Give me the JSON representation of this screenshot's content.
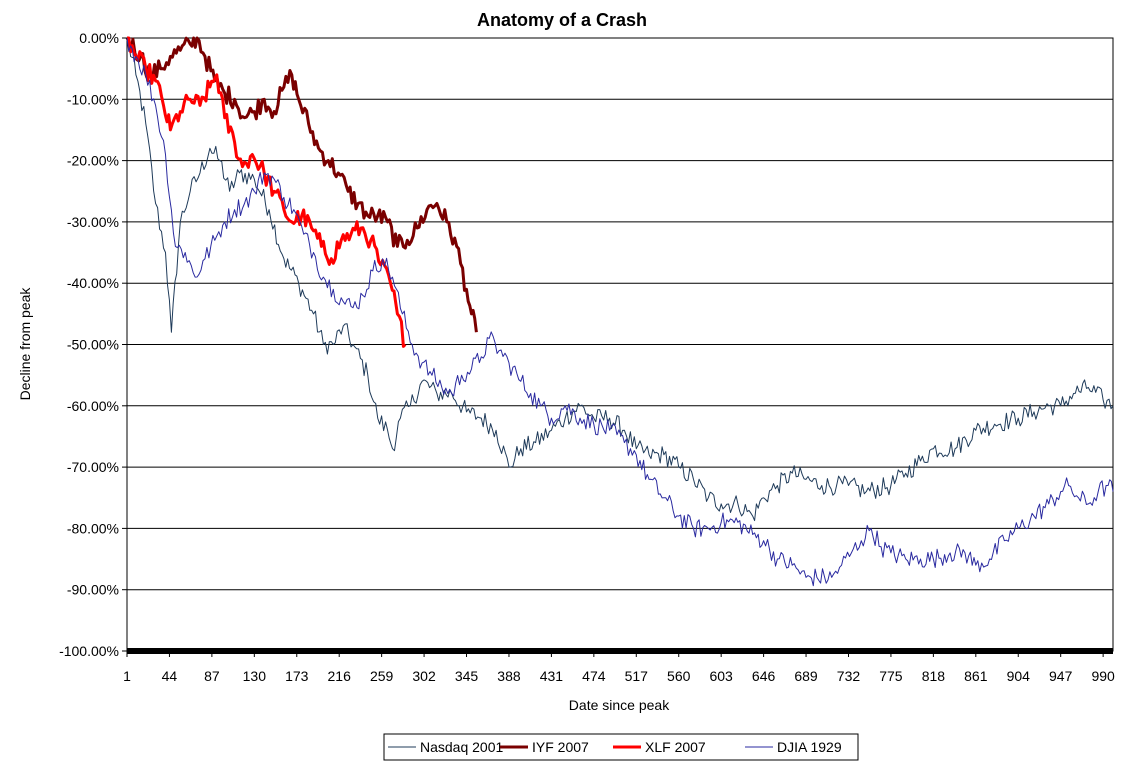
{
  "chart_data": {
    "type": "line",
    "title": "Anatomy of a Crash",
    "xlabel": "Date since peak",
    "ylabel": "Decline from peak",
    "xlim": [
      1,
      1000
    ],
    "ylim": [
      -100,
      0
    ],
    "x_ticks": [
      "1",
      "44",
      "87",
      "130",
      "173",
      "216",
      "259",
      "302",
      "345",
      "388",
      "431",
      "474",
      "517",
      "560",
      "603",
      "646",
      "689",
      "732",
      "775",
      "818",
      "861",
      "904",
      "947",
      "990"
    ],
    "y_ticks": [
      "0.00%",
      "-10.00%",
      "-20.00%",
      "-30.00%",
      "-40.00%",
      "-50.00%",
      "-60.00%",
      "-70.00%",
      "-80.00%",
      "-90.00%",
      "-100.00%"
    ],
    "grid": "horizontal",
    "legend_position": "bottom",
    "series": [
      {
        "name": "Nasdaq 2001",
        "color": "#1f3b5a",
        "points": [
          [
            1,
            0
          ],
          [
            10,
            -6
          ],
          [
            20,
            -14
          ],
          [
            30,
            -27
          ],
          [
            40,
            -35
          ],
          [
            46,
            -48
          ],
          [
            55,
            -30
          ],
          [
            65,
            -25
          ],
          [
            75,
            -22
          ],
          [
            85,
            -18
          ],
          [
            95,
            -20
          ],
          [
            105,
            -25
          ],
          [
            115,
            -22
          ],
          [
            130,
            -23
          ],
          [
            145,
            -28
          ],
          [
            160,
            -36
          ],
          [
            175,
            -40
          ],
          [
            190,
            -45
          ],
          [
            200,
            -50
          ],
          [
            210,
            -50
          ],
          [
            220,
            -47
          ],
          [
            230,
            -50
          ],
          [
            245,
            -55
          ],
          [
            255,
            -62
          ],
          [
            265,
            -64
          ],
          [
            270,
            -67
          ],
          [
            278,
            -62
          ],
          [
            288,
            -60
          ],
          [
            300,
            -56
          ],
          [
            315,
            -58
          ],
          [
            330,
            -58
          ],
          [
            345,
            -61
          ],
          [
            360,
            -62
          ],
          [
            375,
            -64
          ],
          [
            388,
            -70
          ],
          [
            400,
            -67
          ],
          [
            415,
            -66
          ],
          [
            431,
            -64
          ],
          [
            445,
            -62
          ],
          [
            460,
            -60
          ],
          [
            474,
            -62
          ],
          [
            490,
            -62
          ],
          [
            505,
            -64
          ],
          [
            517,
            -67
          ],
          [
            530,
            -68
          ],
          [
            545,
            -68
          ],
          [
            560,
            -70
          ],
          [
            575,
            -72
          ],
          [
            590,
            -75
          ],
          [
            603,
            -76
          ],
          [
            620,
            -76
          ],
          [
            635,
            -78
          ],
          [
            646,
            -75
          ],
          [
            660,
            -73
          ],
          [
            675,
            -71
          ],
          [
            689,
            -72
          ],
          [
            705,
            -73
          ],
          [
            720,
            -73
          ],
          [
            732,
            -73
          ],
          [
            750,
            -74
          ],
          [
            775,
            -73
          ],
          [
            790,
            -71
          ],
          [
            805,
            -69
          ],
          [
            818,
            -67
          ],
          [
            840,
            -67
          ],
          [
            861,
            -64
          ],
          [
            880,
            -63
          ],
          [
            904,
            -62
          ],
          [
            920,
            -61
          ],
          [
            935,
            -60
          ],
          [
            947,
            -60
          ],
          [
            960,
            -58
          ],
          [
            975,
            -57
          ],
          [
            990,
            -59
          ],
          [
            1000,
            -60
          ]
        ]
      },
      {
        "name": "IYF 2007",
        "color": "#7a0000",
        "points": [
          [
            1,
            0
          ],
          [
            15,
            -3
          ],
          [
            25,
            -6
          ],
          [
            35,
            -5
          ],
          [
            45,
            -3
          ],
          [
            55,
            -2
          ],
          [
            65,
            -1
          ],
          [
            72,
            0
          ],
          [
            80,
            -3
          ],
          [
            90,
            -7
          ],
          [
            100,
            -9
          ],
          [
            110,
            -10
          ],
          [
            120,
            -13
          ],
          [
            130,
            -12
          ],
          [
            140,
            -10
          ],
          [
            150,
            -12
          ],
          [
            160,
            -8
          ],
          [
            168,
            -6
          ],
          [
            175,
            -10
          ],
          [
            185,
            -14
          ],
          [
            195,
            -18
          ],
          [
            205,
            -20
          ],
          [
            215,
            -22
          ],
          [
            225,
            -25
          ],
          [
            235,
            -27
          ],
          [
            245,
            -29
          ],
          [
            255,
            -29
          ],
          [
            265,
            -30
          ],
          [
            275,
            -34
          ],
          [
            285,
            -33
          ],
          [
            295,
            -31
          ],
          [
            305,
            -28
          ],
          [
            315,
            -27
          ],
          [
            325,
            -30
          ],
          [
            335,
            -34
          ],
          [
            345,
            -41
          ],
          [
            350,
            -45
          ],
          [
            355,
            -48
          ]
        ]
      },
      {
        "name": "XLF 2007",
        "color": "#ff0000",
        "points": [
          [
            1,
            0
          ],
          [
            10,
            -3
          ],
          [
            20,
            -5
          ],
          [
            30,
            -7
          ],
          [
            38,
            -11
          ],
          [
            45,
            -15
          ],
          [
            55,
            -12
          ],
          [
            65,
            -10
          ],
          [
            75,
            -11
          ],
          [
            85,
            -8
          ],
          [
            92,
            -6
          ],
          [
            100,
            -13
          ],
          [
            110,
            -17
          ],
          [
            118,
            -21
          ],
          [
            128,
            -19
          ],
          [
            140,
            -22
          ],
          [
            150,
            -25
          ],
          [
            160,
            -28
          ],
          [
            168,
            -30
          ],
          [
            178,
            -29
          ],
          [
            188,
            -31
          ],
          [
            198,
            -34
          ],
          [
            208,
            -36
          ],
          [
            218,
            -33
          ],
          [
            228,
            -32
          ],
          [
            238,
            -31
          ],
          [
            248,
            -33
          ],
          [
            258,
            -37
          ],
          [
            268,
            -40
          ],
          [
            275,
            -45
          ],
          [
            283,
            -50
          ]
        ]
      },
      {
        "name": "DJIA 1929",
        "color": "#2a2aa0",
        "points": [
          [
            1,
            0
          ],
          [
            10,
            -3
          ],
          [
            20,
            -6
          ],
          [
            30,
            -11
          ],
          [
            40,
            -19
          ],
          [
            50,
            -34
          ],
          [
            60,
            -35
          ],
          [
            70,
            -39
          ],
          [
            80,
            -36
          ],
          [
            90,
            -33
          ],
          [
            100,
            -30
          ],
          [
            110,
            -28
          ],
          [
            120,
            -27
          ],
          [
            130,
            -25
          ],
          [
            140,
            -22
          ],
          [
            150,
            -23
          ],
          [
            160,
            -26
          ],
          [
            170,
            -28
          ],
          [
            180,
            -32
          ],
          [
            190,
            -35
          ],
          [
            200,
            -39
          ],
          [
            210,
            -41
          ],
          [
            220,
            -43
          ],
          [
            230,
            -44
          ],
          [
            240,
            -42
          ],
          [
            250,
            -38
          ],
          [
            260,
            -36
          ],
          [
            270,
            -39
          ],
          [
            280,
            -45
          ],
          [
            290,
            -50
          ],
          [
            300,
            -53
          ],
          [
            310,
            -55
          ],
          [
            320,
            -57
          ],
          [
            330,
            -58
          ],
          [
            340,
            -55
          ],
          [
            350,
            -54
          ],
          [
            360,
            -52
          ],
          [
            368,
            -49
          ],
          [
            378,
            -51
          ],
          [
            388,
            -53
          ],
          [
            400,
            -56
          ],
          [
            410,
            -58
          ],
          [
            420,
            -60
          ],
          [
            431,
            -62
          ],
          [
            445,
            -60
          ],
          [
            460,
            -62
          ],
          [
            474,
            -63
          ],
          [
            490,
            -64
          ],
          [
            505,
            -66
          ],
          [
            517,
            -68
          ],
          [
            530,
            -72
          ],
          [
            545,
            -75
          ],
          [
            560,
            -78
          ],
          [
            575,
            -80
          ],
          [
            590,
            -80
          ],
          [
            603,
            -79
          ],
          [
            620,
            -79
          ],
          [
            635,
            -81
          ],
          [
            646,
            -82
          ],
          [
            660,
            -85
          ],
          [
            675,
            -86
          ],
          [
            689,
            -88
          ],
          [
            700,
            -88
          ],
          [
            715,
            -88
          ],
          [
            725,
            -86
          ],
          [
            735,
            -84
          ],
          [
            745,
            -82
          ],
          [
            755,
            -80
          ],
          [
            765,
            -83
          ],
          [
            775,
            -84
          ],
          [
            790,
            -85
          ],
          [
            805,
            -85
          ],
          [
            818,
            -85
          ],
          [
            835,
            -84
          ],
          [
            850,
            -84
          ],
          [
            861,
            -86
          ],
          [
            875,
            -85
          ],
          [
            890,
            -82
          ],
          [
            904,
            -80
          ],
          [
            920,
            -78
          ],
          [
            935,
            -76
          ],
          [
            947,
            -74
          ],
          [
            955,
            -73
          ],
          [
            965,
            -75
          ],
          [
            975,
            -76
          ],
          [
            985,
            -74
          ],
          [
            995,
            -73
          ],
          [
            1000,
            -74
          ]
        ]
      }
    ]
  }
}
